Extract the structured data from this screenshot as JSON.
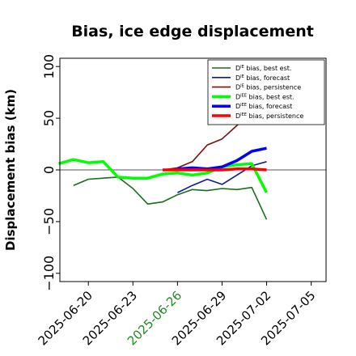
{
  "chart_data": {
    "type": "line",
    "title": "Bias, ice edge displacement",
    "ylabel": "Displacement bias (km)",
    "xlabel": "",
    "ylim": [
      -108,
      108
    ],
    "xlim": [
      "2025-06-18T02:00",
      "2025-07-06T00:00"
    ],
    "yticks": [
      100,
      50,
      0,
      -50,
      -100
    ],
    "yticklabels": [
      "100",
      "50",
      "0",
      "−50",
      "−100"
    ],
    "xticks": [
      "2025-06-20",
      "2025-06-23",
      "2025-06-26",
      "2025-06-29",
      "2025-07-02",
      "2025-07-05"
    ],
    "xtick_colors": [
      "#000000",
      "#000000",
      "#228B22",
      "#000000",
      "#000000",
      "#000000"
    ],
    "zero_line": true,
    "grid": false,
    "legend_position": "top-right",
    "series": [
      {
        "name": "Dᴵᴱ bias, best est.",
        "legend_main": "D",
        "legend_sup": "IE",
        "legend_rest": " bias, best est.",
        "color": "#1a6e1a",
        "width": 1.6,
        "x": [
          "2025-06-19",
          "2025-06-20",
          "2025-06-22",
          "2025-06-23",
          "2025-06-24",
          "2025-06-25",
          "2025-06-26",
          "2025-06-27",
          "2025-06-28",
          "2025-06-29",
          "2025-06-30",
          "2025-07-01",
          "2025-07-02"
        ],
        "values": [
          -15,
          -9,
          -7,
          -18,
          -33,
          -31,
          -24,
          -19,
          -20,
          -18,
          -19,
          -17,
          -48
        ]
      },
      {
        "name": "Dᴵᴱ bias, forecast",
        "legend_main": "D",
        "legend_sup": "IE",
        "legend_rest": " bias, forecast",
        "color": "#0d1a99",
        "width": 1.6,
        "x": [
          "2025-06-26",
          "2025-06-27",
          "2025-06-28",
          "2025-06-29",
          "2025-06-30",
          "2025-07-01",
          "2025-07-02"
        ],
        "values": [
          -22,
          -15,
          -9,
          -14,
          -5,
          4,
          8
        ]
      },
      {
        "name": "Dᴵᴱ bias, persistence",
        "legend_main": "D",
        "legend_sup": "IE",
        "legend_rest": " bias, persistence",
        "color": "#7a1010",
        "width": 1.6,
        "x": [
          "2025-06-25",
          "2025-06-26",
          "2025-06-27",
          "2025-06-28",
          "2025-06-29",
          "2025-06-30",
          "2025-07-01"
        ],
        "values": [
          0,
          2,
          8,
          24,
          30,
          43,
          55
        ]
      },
      {
        "name": "Dᴵᴱᴱ bias, best est.",
        "legend_main": "D",
        "legend_sup": "IEE",
        "legend_rest": " bias, best est.",
        "color": "#00ff00",
        "width": 3.5,
        "x": [
          "2025-06-18",
          "2025-06-19",
          "2025-06-20",
          "2025-06-21",
          "2025-06-22",
          "2025-06-23",
          "2025-06-24",
          "2025-06-25",
          "2025-06-26",
          "2025-06-27",
          "2025-06-28",
          "2025-06-29",
          "2025-06-30",
          "2025-07-01",
          "2025-07-02"
        ],
        "values": [
          6,
          10,
          7,
          8,
          -7,
          -8,
          -8,
          -4,
          -3,
          -5,
          -3,
          3,
          5,
          6,
          -22
        ]
      },
      {
        "name": "Dᴵᴱᴱ bias, forecast",
        "legend_main": "D",
        "legend_sup": "IEE",
        "legend_rest": " bias, forecast",
        "color": "#0000ff",
        "width": 3.5,
        "x": [
          "2025-06-26",
          "2025-06-27",
          "2025-06-28",
          "2025-06-29",
          "2025-06-30",
          "2025-07-01",
          "2025-07-02"
        ],
        "values": [
          1,
          2,
          1,
          3,
          9,
          18,
          21
        ]
      },
      {
        "name": "Dᴵᴱᴱ bias, persistence",
        "legend_main": "D",
        "legend_sup": "IEE",
        "legend_rest": " bias, persistence",
        "color": "#ff0000",
        "width": 3.5,
        "x": [
          "2025-06-25",
          "2025-06-26",
          "2025-06-27",
          "2025-06-28",
          "2025-06-29",
          "2025-06-30",
          "2025-07-01",
          "2025-07-02"
        ],
        "values": [
          0,
          0,
          0,
          0,
          0,
          1,
          1,
          0
        ]
      }
    ]
  }
}
